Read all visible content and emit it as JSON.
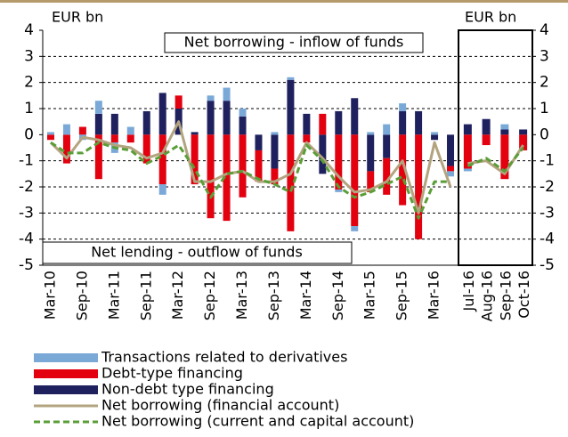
{
  "chart_data": [
    {
      "type": "bar",
      "y_label": "EUR bn",
      "y_axis": "left",
      "categories": [
        "Mar-10",
        null,
        "Sep-10",
        null,
        "Mar-11",
        null,
        "Sep-11",
        null,
        "Mar-12",
        null,
        "Sep-12",
        null,
        "Mar-13",
        null,
        "Sep-13",
        null,
        "Mar-14",
        null,
        "Sep-14",
        null,
        "Mar-15",
        null,
        "Sep-15",
        null,
        "Mar-16",
        null
      ],
      "series": [
        {
          "name": "Transactions related to derivatives",
          "color": "#7aa9d8",
          "kind": "bar",
          "values": [
            0.1,
            0.4,
            -0.2,
            0.5,
            -0.4,
            0.3,
            0,
            -0.4,
            0,
            0,
            0.2,
            0.5,
            0.3,
            0,
            0.1,
            0.1,
            0,
            0,
            -0.1,
            -0.2,
            0.1,
            0.4,
            0.3,
            0,
            0.1,
            -0.2
          ]
        },
        {
          "name": "Debt-type financing",
          "color": "#e3000f",
          "kind": "bar",
          "values": [
            -0.2,
            -1.1,
            0.3,
            -1.7,
            -0.3,
            -0.3,
            -1.1,
            -1.9,
            0.5,
            -1.9,
            -3.2,
            -3.3,
            -2.4,
            -1.2,
            -0.6,
            -3.7,
            -0.3,
            0.8,
            -2.1,
            -3.5,
            -0.8,
            -1.4,
            -2.7,
            -4.0,
            0,
            -0.2
          ]
        },
        {
          "name": "Non-debt type financing",
          "color": "#1f215e",
          "kind": "bar",
          "values": [
            0,
            0,
            0,
            0.8,
            0.8,
            0,
            0.9,
            1.6,
            1.0,
            0.1,
            1.3,
            1.3,
            0.7,
            -0.6,
            -1.3,
            2.1,
            0.8,
            -1.5,
            0.9,
            1.4,
            -1.4,
            -0.9,
            0.9,
            0.9,
            -0.2,
            -1.2
          ]
        },
        {
          "name": "Net borrowing (financial account)",
          "color": "#b3a47f",
          "kind": "line",
          "dash": false,
          "values": [
            -0.3,
            -0.9,
            -0.1,
            -0.2,
            -0.4,
            -0.5,
            -0.9,
            -0.7,
            0.5,
            -1.8,
            -1.8,
            -1.5,
            -1.4,
            -1.8,
            -1.8,
            -1.5,
            -0.3,
            -0.9,
            -1.6,
            -2.2,
            -2.1,
            -1.8,
            -1.0,
            -3.0,
            -0.3,
            -2.0
          ]
        },
        {
          "name": "Net borrowing (current and capital account)",
          "color": "#5a9e37",
          "kind": "line",
          "dash": true,
          "values": [
            -0.3,
            -0.7,
            -0.7,
            -0.3,
            -0.5,
            -0.6,
            -1.1,
            -0.8,
            -0.4,
            -1.3,
            -2.4,
            -1.5,
            -1.4,
            -1.7,
            -1.9,
            -2.2,
            -0.4,
            -1.0,
            -2.0,
            -2.4,
            -2.2,
            -1.9,
            -1.6,
            -3.2,
            -1.8,
            -1.8
          ]
        }
      ],
      "annotations": [
        "Net borrowing - inflow of funds",
        "Net lending - outflow of funds"
      ],
      "ylim": [
        -5,
        4
      ],
      "yticks": [
        -5,
        -4,
        -3,
        -2,
        -1,
        0,
        1,
        2,
        3,
        4
      ],
      "grid": true
    },
    {
      "type": "bar",
      "y_label": "EUR bn",
      "y_axis": "right",
      "categories": [
        "Jul-16",
        "Aug-16",
        "Sep-16",
        "Oct-16"
      ],
      "series": [
        {
          "color": "#7aa9d8",
          "kind": "bar",
          "values": [
            -0.1,
            0,
            0.2,
            0
          ]
        },
        {
          "color": "#e3000f",
          "kind": "bar",
          "values": [
            -1.3,
            -0.4,
            -1.7,
            -0.6
          ]
        },
        {
          "color": "#1f215e",
          "kind": "bar",
          "values": [
            0.4,
            0.6,
            0.2,
            0.2
          ]
        },
        {
          "color": "#b3a47f",
          "kind": "line",
          "dash": false,
          "values": [
            -1.1,
            -1.0,
            -1.5,
            -0.4
          ]
        },
        {
          "color": "#5a9e37",
          "kind": "line",
          "dash": true,
          "values": [
            -1.2,
            -0.9,
            -1.4,
            -0.5
          ]
        }
      ],
      "ylim": [
        -5,
        4
      ],
      "yticks": [
        -5,
        -4,
        -3,
        -2,
        -1,
        0,
        1,
        2,
        3,
        4
      ],
      "grid": true
    }
  ]
}
